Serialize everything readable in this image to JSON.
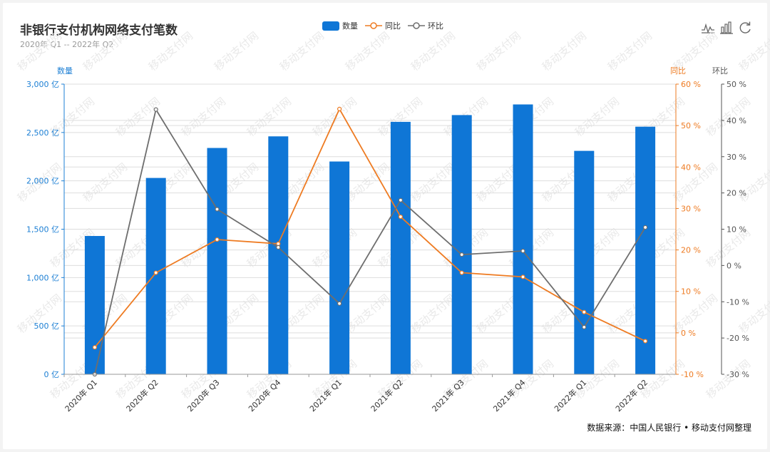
{
  "chart": {
    "title": "非银行支付机构网络支付笔数",
    "subtitle": "2020年 Q1 -- 2022年 Q2",
    "source": "数据来源：中国人民银行 • 移动支付网整理",
    "watermark": "移动支付网",
    "toolbox": [
      "line-chart-icon",
      "bar-chart-icon",
      "restore-icon"
    ]
  },
  "legend": {
    "items": [
      "数量",
      "同比",
      "环比"
    ],
    "placement": "top-center"
  },
  "colors": {
    "bar": "#0f76d6",
    "yoy": "#ee7b22",
    "qoq": "#6e6e6e",
    "axis_left": "#1c7fd4",
    "axis_right1": "#ee7b22",
    "axis_right2": "#555555"
  },
  "chart_data": {
    "type": "bar",
    "title": "非银行支付机构网络支付笔数",
    "categories": [
      "2020年 Q1",
      "2020年 Q2",
      "2020年 Q3",
      "2020年 Q4",
      "2021年 Q1",
      "2021年 Q2",
      "2021年 Q3",
      "2021年 Q4",
      "2022年 Q1",
      "2022年 Q2"
    ],
    "series": [
      {
        "name": "数量",
        "type": "bar",
        "axis": "left",
        "values": [
          1430,
          2030,
          2340,
          2460,
          2200,
          2610,
          2680,
          2790,
          2310,
          2560
        ]
      },
      {
        "name": "同比",
        "type": "line",
        "axis": "right1",
        "values": [
          -3.5,
          14.5,
          22.5,
          21.5,
          54.0,
          28.0,
          14.5,
          13.5,
          5.0,
          -2.0
        ]
      },
      {
        "name": "环比",
        "type": "line",
        "axis": "right2",
        "values": [
          -30.0,
          43.0,
          15.5,
          5.0,
          -10.5,
          18.0,
          3.0,
          4.0,
          -17.0,
          10.5
        ]
      }
    ],
    "axes": {
      "left": {
        "name": "数量",
        "min": 0,
        "max": 3000,
        "ticks": [
          "0 亿",
          "500 亿",
          "1,000 亿",
          "1,500 亿",
          "2,000 亿",
          "2,500 亿",
          "3,000 亿"
        ]
      },
      "right1": {
        "name": "同比",
        "min": -10,
        "max": 60,
        "ticks": [
          "-10 %",
          "0 %",
          "10 %",
          "20 %",
          "30 %",
          "40 %",
          "50 %",
          "60 %"
        ]
      },
      "right2": {
        "name": "环比",
        "min": -30,
        "max": 50,
        "ticks": [
          "-30 %",
          "-20 %",
          "-10 %",
          "0 %",
          "10 %",
          "20 %",
          "30 %",
          "40 %",
          "50 %"
        ]
      }
    },
    "grid": true
  }
}
